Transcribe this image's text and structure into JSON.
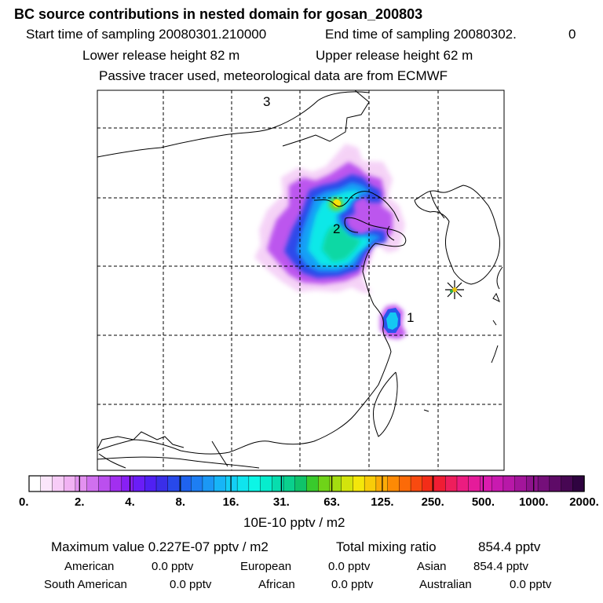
{
  "header": {
    "title": "BC  source contributions in nested domain for gosan_200803",
    "start_label": "Start time of sampling 20080301.210000",
    "end_label": "End time of sampling 20080302.",
    "end_value": "0",
    "lower_release": "Lower release height   82 m",
    "upper_release": "Upper release height   62 m",
    "tracer_note": "Passive tracer used, meteorological data are from ECMWF"
  },
  "map": {
    "labels": [
      {
        "id": "3",
        "text": "3"
      },
      {
        "id": "2",
        "text": "2"
      },
      {
        "id": "1",
        "text": "1"
      }
    ],
    "receptor_marker": "receptor-star-icon",
    "colors": {
      "frame": "#000000",
      "grid": "#000000",
      "coast": "#000000"
    }
  },
  "colorbar": {
    "unit": "10E-10 pptv / m2",
    "tick_labels": [
      "0.",
      "2.",
      "4.",
      "8.",
      "16.",
      "31.",
      "63.",
      "125.",
      "250.",
      "500.",
      "1000.",
      "2000."
    ],
    "colors": [
      "#ffffff",
      "#fbe6fb",
      "#f7ccf7",
      "#f1b2f3",
      "#e391f0",
      "#d070ef",
      "#bb4fee",
      "#a22ff0",
      "#8820f4",
      "#6a1df7",
      "#5020f3",
      "#3a2ee8",
      "#2849ea",
      "#1f63ef",
      "#1d7ef3",
      "#1b98f5",
      "#17b5f7",
      "#14cef5",
      "#0fe4ee",
      "#0cf6e6",
      "#06eccd",
      "#07ddae",
      "#0ad08d",
      "#0fc36a",
      "#39ca2c",
      "#6fd318",
      "#a4dc10",
      "#d3e40c",
      "#f4e70a",
      "#f8cc09",
      "#fbab07",
      "#fd8a05",
      "#fc6a08",
      "#f84a10",
      "#f32d18",
      "#f01d33",
      "#ee1e5c",
      "#ec1c80",
      "#e51b9a",
      "#da1cae",
      "#c91ab0",
      "#b818a8",
      "#a3159b",
      "#8d138c",
      "#750f7a",
      "#5e0b67",
      "#470753",
      "#2f0340"
    ]
  },
  "footer": {
    "maximum_value": "Maximum value  0.227E-07 pptv / m2",
    "total_mixing": "Total mixing ratio",
    "total_value": "854.4 pptv",
    "regions": [
      {
        "name": "American",
        "value": "0.0 pptv"
      },
      {
        "name": "European",
        "value": "0.0 pptv"
      },
      {
        "name": "Asian",
        "value": "854.4 pptv"
      },
      {
        "name": "South American",
        "value": "0.0 pptv"
      },
      {
        "name": "African",
        "value": "0.0 pptv"
      },
      {
        "name": "Australian",
        "value": "0.0 pptv"
      }
    ]
  }
}
